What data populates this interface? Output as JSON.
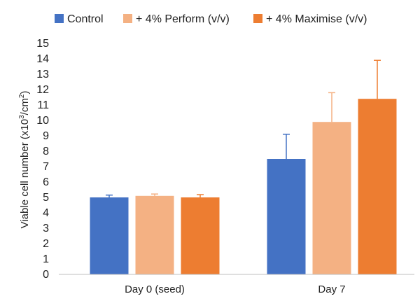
{
  "chart_data": {
    "type": "bar",
    "title": "",
    "xlabel": "",
    "ylabel": {
      "prefix": "Viable cell number (x10",
      "sup1": "3",
      "middle": "/cm",
      "sup2": "2",
      "suffix": ")"
    },
    "categories": [
      "Day 0 (seed)",
      "Day 7"
    ],
    "series": [
      {
        "name": "Control",
        "color": "#4472C4",
        "values": [
          5.0,
          7.5
        ],
        "errors": [
          0.15,
          1.6
        ]
      },
      {
        "name": "+ 4% Perform (v/v)",
        "color": "#F4B183",
        "values": [
          5.1,
          9.9
        ],
        "errors": [
          0.12,
          1.9
        ]
      },
      {
        "name": "+ 4% Maximise (v/v)",
        "color": "#ED7D31",
        "values": [
          5.0,
          11.4
        ],
        "errors": [
          0.18,
          2.5
        ]
      }
    ],
    "ylim": [
      0,
      15
    ],
    "yticks": [
      0,
      1,
      2,
      3,
      4,
      5,
      6,
      7,
      8,
      9,
      10,
      11,
      12,
      13,
      14,
      15
    ],
    "grid": false,
    "legend": "top"
  }
}
